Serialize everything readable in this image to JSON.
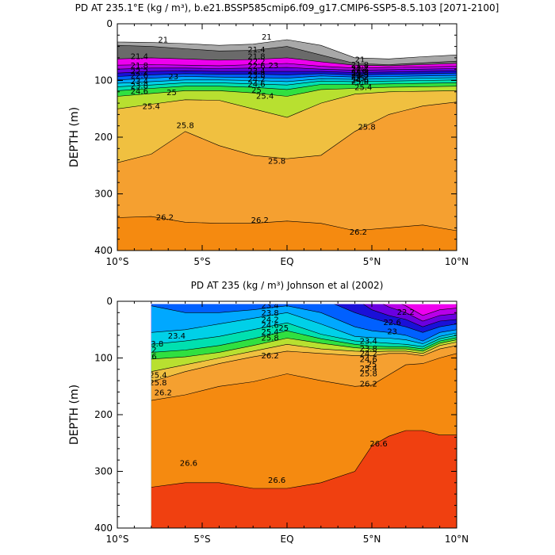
{
  "chart_data": [
    {
      "type": "heatmap",
      "title": "PD AT 235.1°E (kg / m³), b.e21.BSSP585cmip6.f09_g17.CMIP6-SSP5-8.5.103 [2071-2100]",
      "ylabel": "DEPTH (m)",
      "xlabel": "",
      "x_ticks": [
        "10°S",
        "5°S",
        "EQ",
        "5°N",
        "10°N"
      ],
      "x_tick_values": [
        -10,
        -5,
        0,
        5,
        10
      ],
      "y_ticks": [
        "0",
        "100",
        "200",
        "300",
        "400"
      ],
      "y_tick_values": [
        0,
        100,
        200,
        300,
        400
      ],
      "xlim": [
        -10,
        10
      ],
      "ylim": [
        400,
        0
      ],
      "x": [
        -10,
        -8,
        -6,
        -4,
        -2,
        0,
        2,
        4,
        6,
        8,
        10
      ],
      "bathymetry_mask_x": [
        -10,
        -8,
        -6,
        -4,
        -2,
        0,
        2,
        4,
        6,
        8,
        10
      ],
      "bathymetry_mask_depth": [
        32,
        33,
        35,
        38,
        36,
        28,
        38,
        60,
        62,
        58,
        55
      ],
      "levels": [
        20.6,
        21,
        21.4,
        21.8,
        22.2,
        22.6,
        23,
        23.4,
        23.8,
        24.2,
        24.6,
        25,
        25.4,
        25.8,
        26.2
      ],
      "isopycnals": [
        {
          "value": 21,
          "depth": [
            38,
            40,
            44,
            48,
            47,
            40,
            55,
            70,
            72,
            69,
            66
          ]
        },
        {
          "value": 21.4,
          "depth": [
            62,
            60,
            62,
            64,
            63,
            60,
            67,
            73,
            74,
            72,
            70
          ]
        },
        {
          "value": 21.8,
          "depth": [
            73,
            72,
            73,
            74,
            72,
            70,
            75,
            78,
            77,
            76,
            75
          ]
        },
        {
          "value": 22.2,
          "depth": [
            80,
            78,
            78,
            79,
            78,
            77,
            80,
            82,
            81,
            80,
            79
          ]
        },
        {
          "value": 22.6,
          "depth": [
            87,
            84,
            83,
            84,
            84,
            84,
            84,
            86,
            85,
            84,
            83
          ]
        },
        {
          "value": 23,
          "depth": [
            93,
            90,
            88,
            89,
            89,
            90,
            88,
            90,
            89,
            88,
            87
          ]
        },
        {
          "value": 23.4,
          "depth": [
            99,
            96,
            93,
            94,
            95,
            96,
            92,
            94,
            93,
            92,
            91
          ]
        },
        {
          "value": 23.8,
          "depth": [
            105,
            102,
            99,
            99,
            100,
            102,
            97,
            98,
            97,
            96,
            95
          ]
        },
        {
          "value": 24.2,
          "depth": [
            111,
            108,
            104,
            104,
            106,
            108,
            101,
            102,
            101,
            100,
            99
          ]
        },
        {
          "value": 24.6,
          "depth": [
            118,
            114,
            110,
            110,
            112,
            116,
            107,
            107,
            106,
            105,
            104
          ]
        },
        {
          "value": 25,
          "depth": [
            128,
            123,
            118,
            118,
            122,
            128,
            116,
            114,
            112,
            111,
            110
          ]
        },
        {
          "value": 25.4,
          "depth": [
            150,
            142,
            134,
            135,
            150,
            165,
            140,
            124,
            120,
            119,
            118
          ]
        },
        {
          "value": 25.8,
          "depth": [
            245,
            230,
            190,
            215,
            232,
            238,
            232,
            190,
            160,
            145,
            138
          ]
        },
        {
          "value": 26.2,
          "depth": [
            342,
            340,
            350,
            352,
            352,
            348,
            352,
            365,
            360,
            355,
            365
          ]
        }
      ],
      "contour_labels": [
        {
          "text": "21",
          "x": -7.3,
          "y": 33
        },
        {
          "text": "21",
          "x": -1.2,
          "y": 28
        },
        {
          "text": "21",
          "x": 4.3,
          "y": 68
        },
        {
          "text": "21.4",
          "x": -8.7,
          "y": 62
        },
        {
          "text": "21.4",
          "x": -1.8,
          "y": 50
        },
        {
          "text": "21.8",
          "x": -8.7,
          "y": 78
        },
        {
          "text": "21.8",
          "x": -1.8,
          "y": 62
        },
        {
          "text": "22.2",
          "x": -8.7,
          "y": 89
        },
        {
          "text": "22.2",
          "x": -1.8,
          "y": 71
        },
        {
          "text": "22.6",
          "x": -8.7,
          "y": 96
        },
        {
          "text": "22.6",
          "x": -1.8,
          "y": 79
        },
        {
          "text": "23",
          "x": -6.7,
          "y": 98
        },
        {
          "text": "23",
          "x": -0.8,
          "y": 78
        },
        {
          "text": "23.4",
          "x": -8.7,
          "y": 106
        },
        {
          "text": "23.4",
          "x": -1.8,
          "y": 88
        },
        {
          "text": "23.8",
          "x": -8.7,
          "y": 114
        },
        {
          "text": "23.8",
          "x": -1.8,
          "y": 95
        },
        {
          "text": "24.2",
          "x": -1.8,
          "y": 103
        },
        {
          "text": "24.6",
          "x": -8.7,
          "y": 124
        },
        {
          "text": "24.6",
          "x": -1.8,
          "y": 111
        },
        {
          "text": "25",
          "x": -6.8,
          "y": 126
        },
        {
          "text": "25",
          "x": -1.8,
          "y": 122
        },
        {
          "text": "25",
          "x": 4.3,
          "y": 101
        },
        {
          "text": "25.4",
          "x": -8.0,
          "y": 150
        },
        {
          "text": "25.4",
          "x": -1.3,
          "y": 132
        },
        {
          "text": "25.4",
          "x": 4.5,
          "y": 117
        },
        {
          "text": "25.8",
          "x": -6.0,
          "y": 184
        },
        {
          "text": "25.8",
          "x": -0.6,
          "y": 247
        },
        {
          "text": "25.8",
          "x": 4.7,
          "y": 187
        },
        {
          "text": "26.2",
          "x": -7.2,
          "y": 346
        },
        {
          "text": "26.2",
          "x": -1.6,
          "y": 351
        },
        {
          "text": "26.2",
          "x": 4.2,
          "y": 372
        },
        {
          "text": "21.8",
          "x": 4.3,
          "y": 77
        },
        {
          "text": "22.2",
          "x": 4.3,
          "y": 83
        },
        {
          "text": "22.6",
          "x": 4.3,
          "y": 86
        },
        {
          "text": "23",
          "x": 4.3,
          "y": 89
        },
        {
          "text": "23.4",
          "x": 4.3,
          "y": 92
        },
        {
          "text": "23.8",
          "x": 4.3,
          "y": 95
        },
        {
          "text": "24.2",
          "x": 4.3,
          "y": 98
        },
        {
          "text": "24.6",
          "x": 4.3,
          "y": 104
        },
        {
          "text": "25.8",
          "x": 4.3,
          "y": 107
        }
      ]
    },
    {
      "type": "heatmap",
      "title": "PD AT 235 (kg / m³) Johnson et al (2002)",
      "ylabel": "DEPTH (m)",
      "xlabel": "",
      "x_ticks": [
        "10°S",
        "5°S",
        "EQ",
        "5°N",
        "10°N"
      ],
      "x_tick_values": [
        -10,
        -5,
        0,
        5,
        10
      ],
      "y_ticks": [
        "0",
        "100",
        "200",
        "300",
        "400"
      ],
      "y_tick_values": [
        0,
        100,
        200,
        300,
        400
      ],
      "xlim": [
        -10,
        10
      ],
      "ylim": [
        400,
        0
      ],
      "data_x_range": [
        -8,
        10
      ],
      "data_depth_range": [
        5,
        400
      ],
      "x": [
        -8,
        -6,
        -4,
        -2,
        0,
        2,
        4,
        5,
        6,
        7,
        8,
        9,
        10
      ],
      "levels": [
        21.8,
        22.2,
        22.6,
        23,
        23.4,
        23.8,
        24.2,
        24.6,
        25,
        25.4,
        25.8,
        26.2,
        26.6
      ],
      "isopycnals": [
        {
          "value": 21.8,
          "depth": [
            -5,
            -5,
            -5,
            -5,
            -5,
            -5,
            -5,
            -5,
            -5,
            8,
            25,
            15,
            12
          ]
        },
        {
          "value": 22.2,
          "depth": [
            -5,
            -5,
            -5,
            -5,
            -5,
            -5,
            -5,
            -5,
            10,
            20,
            35,
            25,
            22
          ]
        },
        {
          "value": 22.6,
          "depth": [
            -5,
            -5,
            -5,
            -5,
            -5,
            -5,
            -5,
            15,
            25,
            32,
            45,
            35,
            32
          ]
        },
        {
          "value": 23,
          "depth": [
            -5,
            -5,
            -5,
            -5,
            -5,
            -5,
            20,
            30,
            38,
            45,
            55,
            45,
            40
          ]
        },
        {
          "value": 23.4,
          "depth": [
            8,
            20,
            20,
            15,
            8,
            20,
            45,
            52,
            55,
            60,
            70,
            55,
            50
          ]
        },
        {
          "value": 23.8,
          "depth": [
            55,
            50,
            40,
            30,
            20,
            40,
            62,
            64,
            65,
            68,
            75,
            62,
            56
          ]
        },
        {
          "value": 24.2,
          "depth": [
            76,
            70,
            62,
            50,
            38,
            58,
            70,
            72,
            74,
            76,
            80,
            66,
            60
          ]
        },
        {
          "value": 24.6,
          "depth": [
            90,
            86,
            78,
            66,
            52,
            66,
            76,
            79,
            80,
            80,
            84,
            70,
            64
          ]
        },
        {
          "value": 25,
          "depth": [
            102,
            98,
            90,
            78,
            65,
            74,
            82,
            84,
            84,
            84,
            88,
            74,
            68
          ]
        },
        {
          "value": 25.4,
          "depth": [
            124,
            112,
            100,
            88,
            76,
            84,
            88,
            89,
            88,
            88,
            92,
            78,
            72
          ]
        },
        {
          "value": 25.8,
          "depth": [
            142,
            124,
            110,
            98,
            88,
            92,
            96,
            96,
            92,
            92,
            96,
            84,
            78
          ]
        },
        {
          "value": 26.2,
          "depth": [
            175,
            165,
            150,
            142,
            128,
            140,
            150,
            148,
            130,
            112,
            110,
            100,
            92
          ]
        },
        {
          "value": 26.6,
          "depth": [
            328,
            320,
            320,
            330,
            330,
            320,
            300,
            255,
            238,
            228,
            228,
            236,
            236
          ]
        }
      ],
      "contour_labels": [
        {
          "text": "23.4",
          "x": -1.0,
          "y": 12
        },
        {
          "text": "23.8",
          "x": -1.0,
          "y": 25
        },
        {
          "text": "24.2",
          "x": -1.0,
          "y": 37
        },
        {
          "text": "24.6",
          "x": -1.0,
          "y": 47
        },
        {
          "text": "25",
          "x": -0.2,
          "y": 52
        },
        {
          "text": "25.4",
          "x": -1.0,
          "y": 59
        },
        {
          "text": "25.8",
          "x": -1.0,
          "y": 69
        },
        {
          "text": "26.2",
          "x": -1.0,
          "y": 101
        },
        {
          "text": "23.4",
          "x": -6.5,
          "y": 66
        },
        {
          "text": "23.8",
          "x": -7.8,
          "y": 80
        },
        {
          "text": "24.2",
          "x": -8.2,
          "y": 90
        },
        {
          "text": "24.6",
          "x": -8.2,
          "y": 102
        },
        {
          "text": "25.4",
          "x": -7.6,
          "y": 135
        },
        {
          "text": "25.8",
          "x": -7.6,
          "y": 148
        },
        {
          "text": "26.2",
          "x": -7.3,
          "y": 166
        },
        {
          "text": "23.4",
          "x": 4.8,
          "y": 75
        },
        {
          "text": "23.8",
          "x": 4.8,
          "y": 88
        },
        {
          "text": "24.2",
          "x": 4.8,
          "y": 97
        },
        {
          "text": "24.6",
          "x": 4.8,
          "y": 107
        },
        {
          "text": "25",
          "x": 5.0,
          "y": 116
        },
        {
          "text": "25.4",
          "x": 4.8,
          "y": 123
        },
        {
          "text": "25.8",
          "x": 4.8,
          "y": 132
        },
        {
          "text": "26.2",
          "x": 4.8,
          "y": 150
        },
        {
          "text": "22.6",
          "x": 6.2,
          "y": 42
        },
        {
          "text": "23",
          "x": 6.2,
          "y": 58
        },
        {
          "text": "22.2",
          "x": 7.0,
          "y": 24
        },
        {
          "text": "26.6",
          "x": -5.8,
          "y": 290
        },
        {
          "text": "26.6",
          "x": -0.6,
          "y": 320
        },
        {
          "text": "26.6",
          "x": 5.4,
          "y": 256
        }
      ]
    }
  ]
}
